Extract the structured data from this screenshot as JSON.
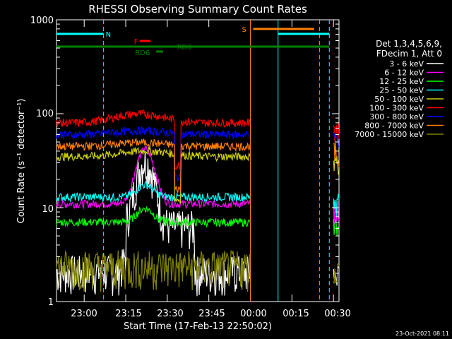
{
  "chart_data": {
    "type": "line",
    "title": "RHESSI Observing Summary Count Rates",
    "xlabel": "Start Time (17-Feb-13 22:50:02)",
    "ylabel": "Count Rate (s⁻¹ detector⁻¹)",
    "yscale": "log",
    "ylim": [
      1,
      1000
    ],
    "xlim_minutes": [
      0,
      102
    ],
    "x_ticks": [
      "23:00",
      "23:15",
      "23:30",
      "23:45",
      "00:00",
      "00:15",
      "00:30"
    ],
    "y_ticks": [
      "1",
      "10",
      "100",
      "1000"
    ],
    "grid": false,
    "legend_position": "right",
    "legend_header": [
      "Det 1,3,4,5,6,9,",
      "FDecim 1, Att 0"
    ],
    "series": [
      {
        "name": "3 - 6 keV",
        "color": "#000000",
        "base": 2.2
      },
      {
        "name": "6 - 12 keV",
        "color": "#ff00ff",
        "base": 11
      },
      {
        "name": "12 - 25 keV",
        "color": "#00ff00",
        "base": 7
      },
      {
        "name": "25 - 50 keV",
        "color": "#00ffff",
        "base": 13
      },
      {
        "name": "50 - 100 keV",
        "color": "#cccc00",
        "base": 35
      },
      {
        "name": "100 - 300 keV",
        "color": "#ff0000",
        "base": 80
      },
      {
        "name": "300 - 800 keV",
        "color": "#0000ff",
        "base": 60
      },
      {
        "name": "800 - 7000 keV",
        "color": "#ff7f00",
        "base": 45
      },
      {
        "name": "7000 - 15000 keV",
        "color": "#808000",
        "base": 2.5
      }
    ],
    "annotations": [
      {
        "label": "N",
        "color": "#00ffff"
      },
      {
        "label": "S",
        "color": "#ff7f00"
      },
      {
        "label": "F",
        "color": "#ff0000"
      },
      {
        "label": "RD6",
        "color": "#008000"
      },
      {
        "label": "RD6",
        "color": "#008000"
      }
    ]
  },
  "footer": {
    "timestamp": "23-Oct-2021 08:11"
  }
}
